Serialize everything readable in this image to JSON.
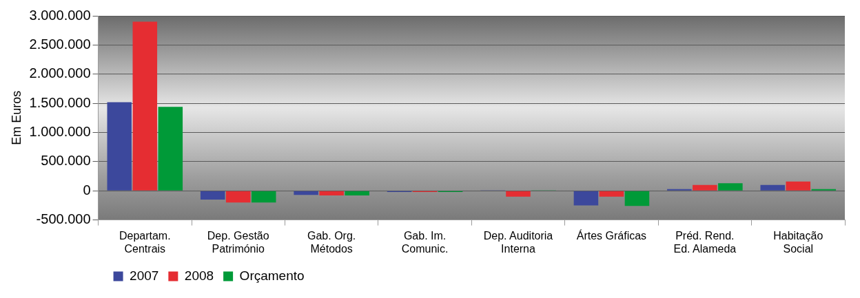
{
  "chart_data": {
    "type": "bar",
    "ylabel": "Em Euros",
    "categories": [
      "Departam.\nCentrais",
      "Dep. Gestão\nPatrimónio",
      "Gab. Org.\nMétodos",
      "Gab. Im.\nComunic.",
      "Dep. Auditoria\nInterna",
      "Ártes Gráficas",
      "Préd. Rend.\nEd. Alameda",
      "Habitação\nSocial"
    ],
    "series": [
      {
        "name": "2007",
        "color": "#3c489c",
        "values": [
          1520000,
          -150000,
          -70000,
          -20000,
          10000,
          -250000,
          30000,
          100000
        ]
      },
      {
        "name": "2008",
        "color": "#e52d32",
        "values": [
          2900000,
          -200000,
          -80000,
          -20000,
          -100000,
          -100000,
          100000,
          160000
        ]
      },
      {
        "name": "Orçamento",
        "color": "#009a38",
        "values": [
          1440000,
          -200000,
          -80000,
          -20000,
          10000,
          -260000,
          130000,
          30000
        ]
      }
    ],
    "ylim": [
      -500000,
      3000000
    ],
    "yticks": [
      {
        "value": -500000,
        "label": "-500.000"
      },
      {
        "value": 0,
        "label": "0"
      },
      {
        "value": 500000,
        "label": "500.000"
      },
      {
        "value": 1000000,
        "label": "1.000.000"
      },
      {
        "value": 1500000,
        "label": "1.500.000"
      },
      {
        "value": 2000000,
        "label": "2.000.000"
      },
      {
        "value": 2500000,
        "label": "2.500.000"
      },
      {
        "value": 3000000,
        "label": "3.000.000"
      }
    ],
    "grid": "y",
    "legend": "bottom left"
  }
}
